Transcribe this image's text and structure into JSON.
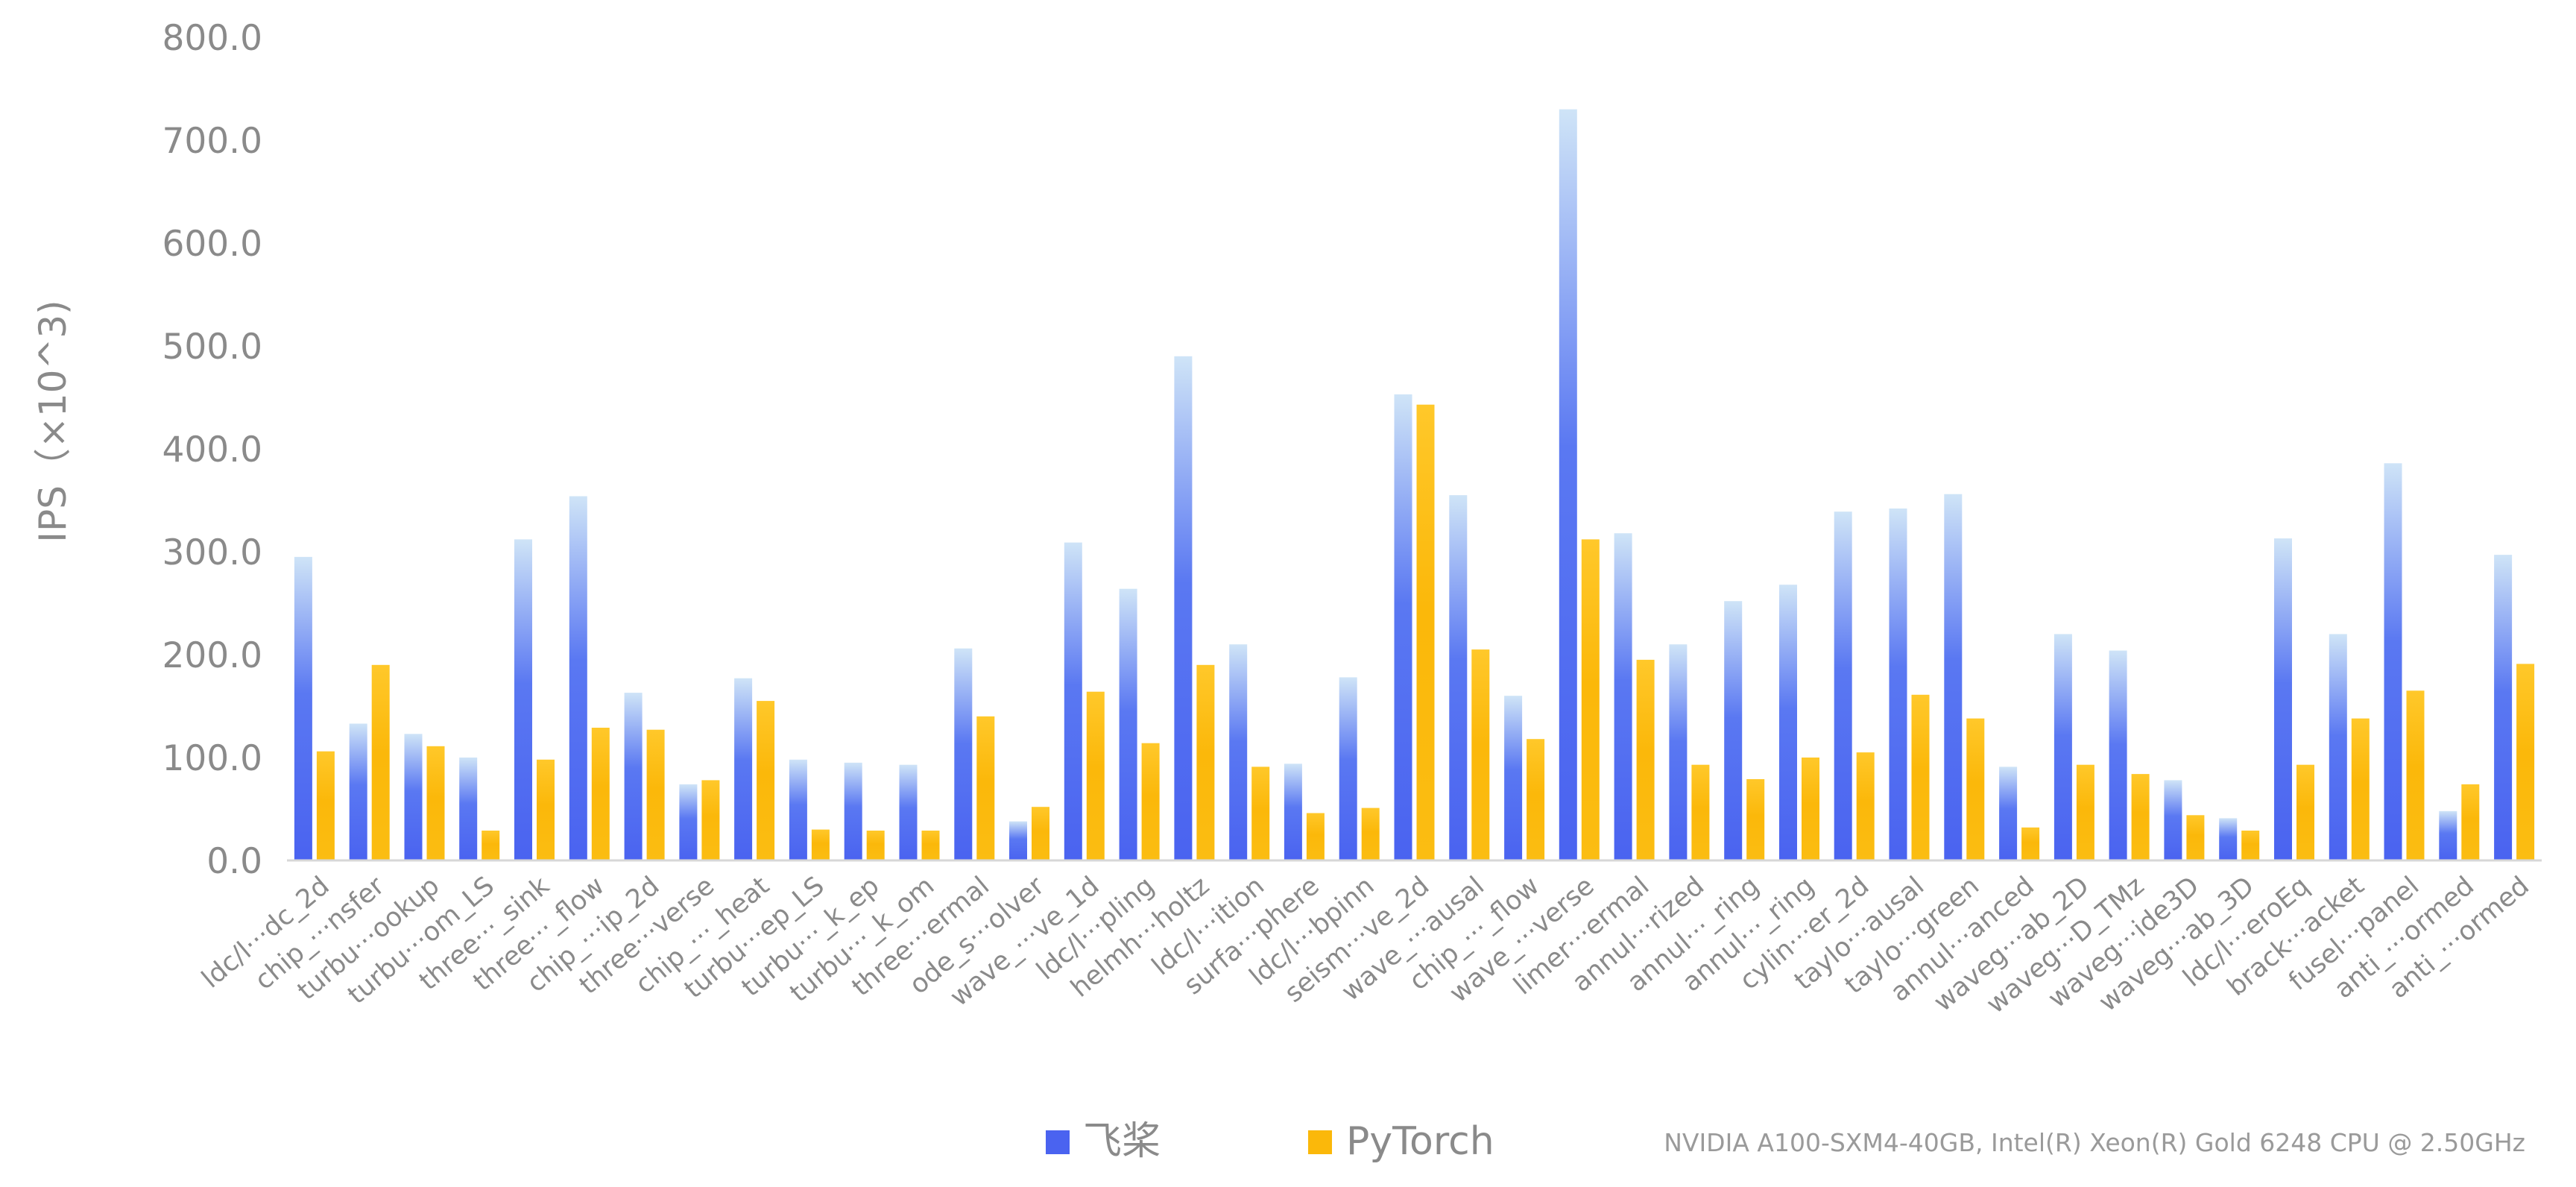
{
  "chart_data": {
    "type": "bar",
    "title": "",
    "ylabel": "IPS（×10^3)",
    "xlabel": "",
    "ylim": [
      0,
      800
    ],
    "yticks": [
      "0.0",
      "100.0",
      "200.0",
      "300.0",
      "400.0",
      "500.0",
      "600.0",
      "700.0",
      "800.0"
    ],
    "grid": false,
    "legend_position": "bottom-center",
    "footnote": "NVIDIA A100-SXM4-40GB, Intel(R) Xeon(R) Gold 6248 CPU @ 2.50GHz",
    "categories": [
      "ldc/l···dc_2d",
      "chip_···nsfer",
      "turbu···ookup",
      "turbu···om_LS",
      "three···_sink",
      "three···_flow",
      "chip_···ip_2d",
      "three···verse",
      "chip_···_heat",
      "turbu···ep_LS",
      "turbu···_k_ep",
      "turbu···_k_om",
      "three···ermal",
      "ode_s···olver",
      "wave_···ve_1d",
      "ldc/l···pling",
      "helmh···holtz",
      "ldc/l···ition",
      "surfa···phere",
      "ldc/l···bpinn",
      "seism···ve_2d",
      "wave_···ausal",
      "chip_···_flow",
      "wave_···verse",
      "limer···ermal",
      "annul···rized",
      "annul···_ring",
      "annul···_ring",
      "cylin···er_2d",
      "taylo···ausal",
      "taylo···green",
      "annul···anced",
      "waveg···ab_2D",
      "waveg···D_TMz",
      "waveg···ide3D",
      "waveg···ab_3D",
      "ldc/l···eroEq",
      "brack···acket",
      "fusel···panel",
      "anti_···ormed",
      "anti_···ormed"
    ],
    "series": [
      {
        "name": "飞桨",
        "color": "#4a63f0",
        "values": [
          295,
          133,
          123,
          100,
          312,
          354,
          163,
          74,
          177,
          98,
          95,
          93,
          206,
          38,
          309,
          264,
          490,
          210,
          94,
          178,
          453,
          355,
          160,
          730,
          318,
          210,
          252,
          268,
          339,
          342,
          356,
          91,
          220,
          204,
          78,
          41,
          313,
          220,
          386,
          48,
          297
        ]
      },
      {
        "name": "PyTorch",
        "color": "#fbb80a",
        "values": [
          106,
          190,
          111,
          29,
          98,
          129,
          127,
          78,
          155,
          30,
          29,
          29,
          140,
          52,
          164,
          114,
          190,
          91,
          46,
          51,
          443,
          205,
          118,
          312,
          195,
          93,
          79,
          100,
          105,
          161,
          138,
          32,
          93,
          84,
          44,
          29,
          93,
          138,
          165,
          74,
          191
        ]
      }
    ]
  }
}
